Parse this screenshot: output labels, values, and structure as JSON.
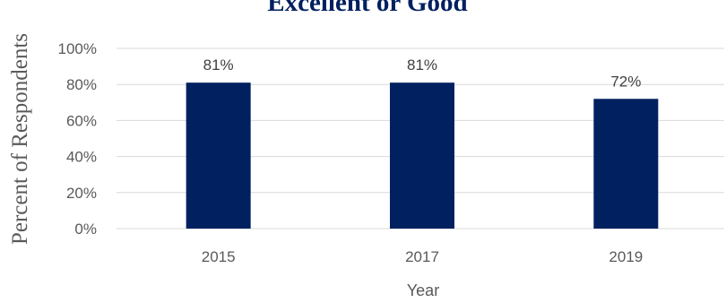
{
  "chart_data": {
    "type": "bar",
    "title": "Excellent or Good",
    "xlabel": "Year",
    "ylabel": "Percent of Respondents",
    "categories": [
      "2015",
      "2017",
      "2019"
    ],
    "values": [
      81,
      81,
      72
    ],
    "data_labels": [
      "81%",
      "81%",
      "72%"
    ],
    "y_ticks": [
      "0%",
      "20%",
      "40%",
      "60%",
      "80%",
      "100%"
    ],
    "ylim": [
      0,
      100
    ],
    "grid": true,
    "legend": "none",
    "bar_color": "#002060"
  }
}
